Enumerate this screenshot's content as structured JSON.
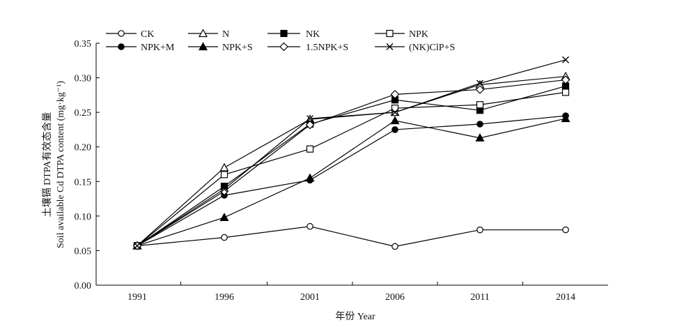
{
  "chart_data": {
    "type": "line",
    "xlabel": "年份 Year",
    "ylabel_cn": "土壤镉 DTPA有效态含量",
    "ylabel_en": "Soil available Cd DTPA content (mg·kg⁻¹)",
    "categories": [
      "1991",
      "1996",
      "2001",
      "2006",
      "2011",
      "2014"
    ],
    "x": [
      1991,
      1996,
      2001,
      2006,
      2011,
      2014
    ],
    "ylim": [
      0,
      0.35
    ],
    "yticks": [
      "0.00",
      "0.05",
      "0.10",
      "0.15",
      "0.20",
      "0.25",
      "0.30",
      "0.35"
    ],
    "grid": false,
    "legend_position": "top",
    "series": [
      {
        "name": "CK",
        "marker": "circle-open",
        "values": [
          0.057,
          0.069,
          0.085,
          0.056,
          0.08,
          0.08
        ]
      },
      {
        "name": "N",
        "marker": "triangle-open",
        "values": [
          0.057,
          0.17,
          0.24,
          0.25,
          0.29,
          0.302
        ]
      },
      {
        "name": "NK",
        "marker": "square-filled",
        "values": [
          0.057,
          0.143,
          0.233,
          0.268,
          0.253,
          0.288
        ]
      },
      {
        "name": "NPK",
        "marker": "square-open",
        "values": [
          0.057,
          0.16,
          0.197,
          0.256,
          0.261,
          0.279
        ]
      },
      {
        "name": "NPK+M",
        "marker": "circle-filled",
        "values": [
          0.057,
          0.13,
          0.152,
          0.225,
          0.233,
          0.245
        ]
      },
      {
        "name": "NPK+S",
        "marker": "triangle-filled",
        "values": [
          0.057,
          0.098,
          0.155,
          0.238,
          0.213,
          0.241
        ]
      },
      {
        "name": "1.5NPK+S",
        "marker": "diamond-open",
        "values": [
          0.057,
          0.136,
          0.232,
          0.276,
          0.283,
          0.297
        ]
      },
      {
        "name": "(NK)ClP+S",
        "marker": "x",
        "values": [
          0.057,
          0.139,
          0.241,
          0.25,
          0.292,
          0.326
        ]
      }
    ]
  }
}
